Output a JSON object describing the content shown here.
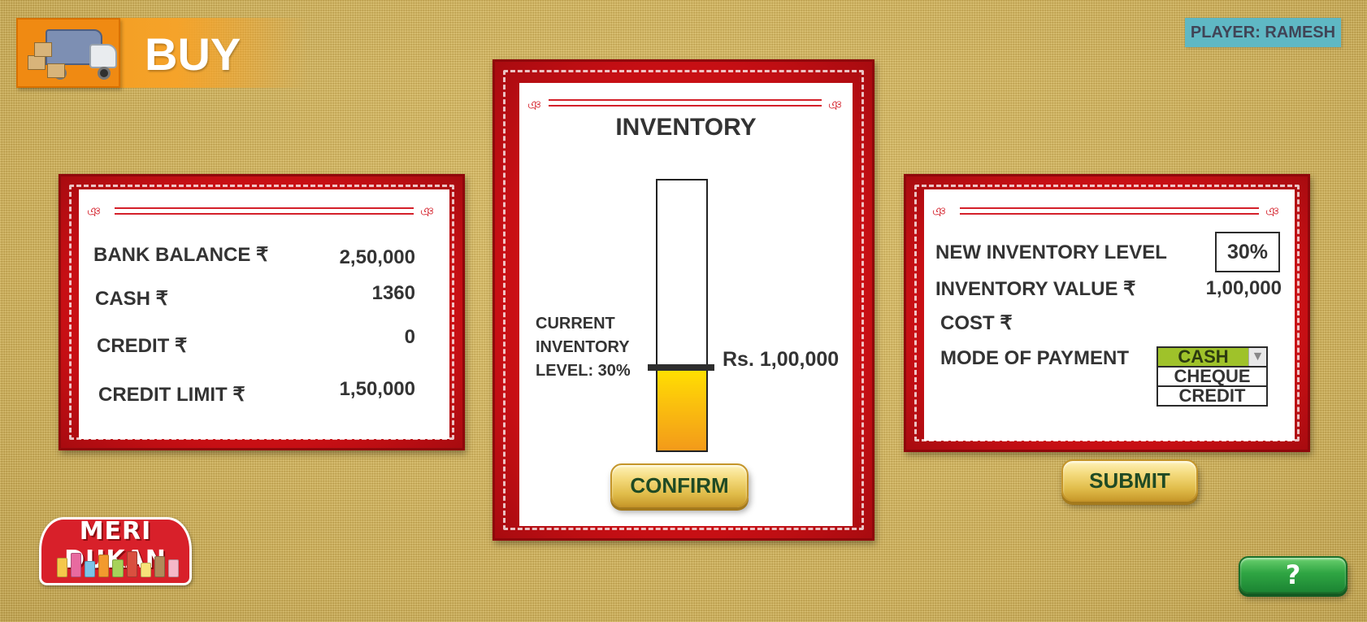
{
  "header": {
    "title": "BUY",
    "player": "PLAYER: RAMESH"
  },
  "balance_panel": {
    "rows": [
      {
        "label": "BANK BALANCE ₹",
        "value": "2,50,000"
      },
      {
        "label": "CASH ₹",
        "value": "1360"
      },
      {
        "label": "CREDIT ₹",
        "value": "0"
      },
      {
        "label": "CREDIT LIMIT ₹",
        "value": "1,50,000"
      }
    ]
  },
  "inventory_panel": {
    "title": "INVENTORY",
    "current_level_label": [
      "CURRENT",
      "INVENTORY",
      "LEVEL: 30%"
    ],
    "current_level_percent": 30,
    "level_value": "Rs. 1,00,000",
    "fill_colors": [
      "#ffe000",
      "#f39a1a"
    ],
    "confirm_label": "CONFIRM"
  },
  "order_panel": {
    "new_level_label": "NEW INVENTORY LEVEL",
    "new_level_value": "30%",
    "inventory_value_label": "INVENTORY VALUE ₹",
    "inventory_value": "1,00,000",
    "cost_label": "COST ₹",
    "cost_value": "",
    "payment_label": "MODE OF PAYMENT",
    "payment_options": [
      "CASH",
      "CHEQUE",
      "CREDIT"
    ],
    "payment_selected": "CASH",
    "submit_label": "SUBMIT"
  },
  "logo": {
    "text": "MERI DUKAN"
  },
  "help": {
    "label": "?"
  },
  "colors": {
    "frame_red": "#d4151a",
    "banner_orange": "#f39a1c",
    "player_badge": "#5fb8c4",
    "button_gold": "#e1bd4b",
    "button_text": "#1f4a24",
    "selected_option": "#9fc22a",
    "help_green": "#2fa543"
  }
}
